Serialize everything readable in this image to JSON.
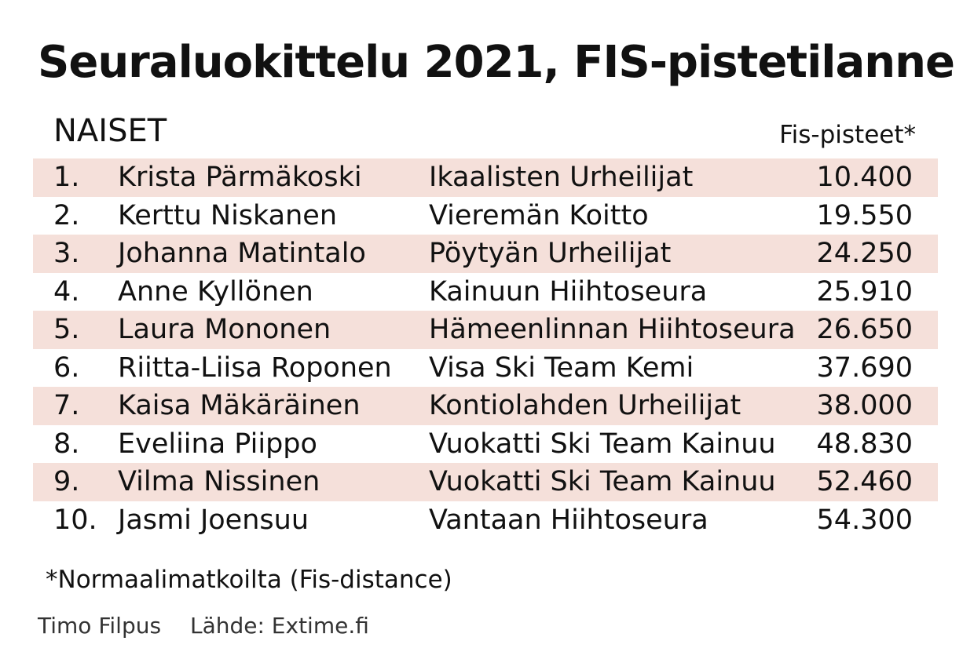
{
  "chart_data": {
    "type": "table",
    "title": "Seuraluokittelu 2021, FIS-pistetilanne",
    "section": "NAISET",
    "value_header": "Fis-pisteet*",
    "row_shade_color": "#f5e0da",
    "rows": [
      {
        "rank": "1.",
        "name": "Krista Pärmäkoski",
        "club": "Ikaalisten Urheilijat",
        "points": "10.400"
      },
      {
        "rank": "2.",
        "name": "Kerttu Niskanen",
        "club": "Vieremän Koitto",
        "points": "19.550"
      },
      {
        "rank": "3.",
        "name": "Johanna Matintalo",
        "club": "Pöytyän Urheilijat",
        "points": "24.250"
      },
      {
        "rank": "4.",
        "name": "Anne Kyllönen",
        "club": "Kainuun Hiihtoseura",
        "points": "25.910"
      },
      {
        "rank": "5.",
        "name": "Laura Mononen",
        "club": "Hämeenlinnan Hiihtoseura",
        "points": "26.650"
      },
      {
        "rank": "6.",
        "name": "Riitta-Liisa Roponen",
        "club": "Visa Ski Team Kemi",
        "points": "37.690"
      },
      {
        "rank": "7.",
        "name": "Kaisa Mäkäräinen",
        "club": "Kontiolahden Urheilijat",
        "points": "38.000"
      },
      {
        "rank": "8.",
        "name": "Eveliina Piippo",
        "club": "Vuokatti Ski Team Kainuu",
        "points": "48.830"
      },
      {
        "rank": "9.",
        "name": "Vilma Nissinen",
        "club": "Vuokatti Ski Team Kainuu",
        "points": "52.460"
      },
      {
        "rank": "10.",
        "name": "Jasmi Joensuu",
        "club": "Vantaan Hiihtoseura",
        "points": "54.300"
      }
    ],
    "footnote": "*Normaalimatkoilta (Fis-distance)",
    "credit": "Timo Filpus",
    "source": "Lähde: Extime.fi"
  }
}
